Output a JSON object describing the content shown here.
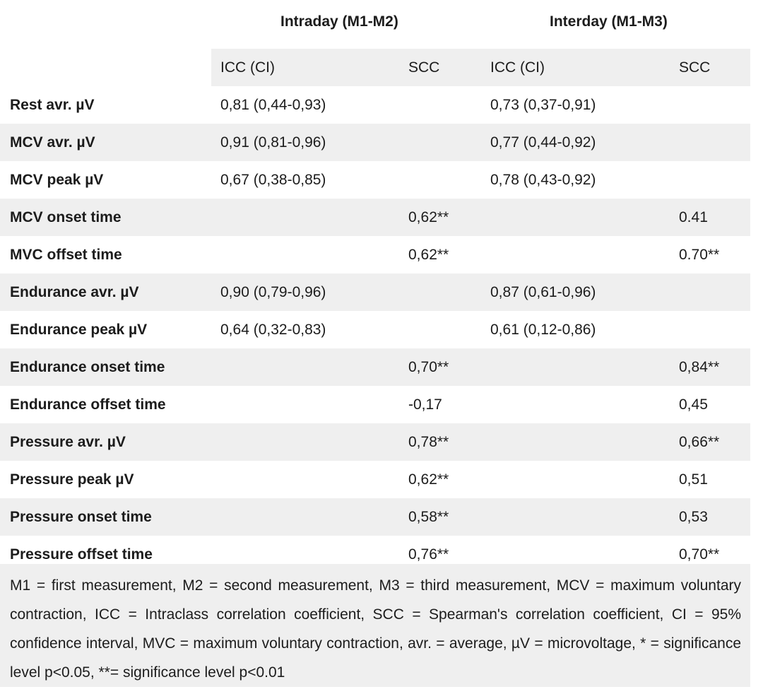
{
  "groups": {
    "intraday": "Intraday (M1-M2)",
    "interday": "Interday (M1-M3)"
  },
  "columns": {
    "icc_intra": "ICC (CI)",
    "scc_intra": "SCC",
    "icc_inter": "ICC (CI)",
    "scc_inter": "SCC"
  },
  "rows": [
    {
      "label": "Rest avr. µV",
      "icc_intra": "0,81 (0,44-0,93)",
      "scc_intra": "",
      "icc_inter": "0,73 (0,37-0,91)",
      "scc_inter": ""
    },
    {
      "label": "MCV avr. µV",
      "icc_intra": "0,91 (0,81-0,96)",
      "scc_intra": "",
      "icc_inter": "0,77 (0,44-0,92)",
      "scc_inter": ""
    },
    {
      "label": "MCV peak µV",
      "icc_intra": "0,67 (0,38-0,85)",
      "scc_intra": "",
      "icc_inter": "0,78 (0,43-0,92)",
      "scc_inter": ""
    },
    {
      "label": "MCV onset time",
      "icc_intra": "",
      "scc_intra": "0,62**",
      "icc_inter": "",
      "scc_inter": "0.41"
    },
    {
      "label": "MVC offset time",
      "icc_intra": "",
      "scc_intra": "0,62**",
      "icc_inter": "",
      "scc_inter": "0.70**"
    },
    {
      "label": "Endurance avr. µV",
      "icc_intra": "0,90 (0,79-0,96)",
      "scc_intra": "",
      "icc_inter": "0,87 (0,61-0,96)",
      "scc_inter": ""
    },
    {
      "label": "Endurance peak µV",
      "icc_intra": "0,64 (0,32-0,83)",
      "scc_intra": "",
      "icc_inter": "0,61 (0,12-0,86)",
      "scc_inter": ""
    },
    {
      "label": "Endurance onset time",
      "icc_intra": "",
      "scc_intra": "0,70**",
      "icc_inter": "",
      "scc_inter": "0,84**"
    },
    {
      "label": "Endurance offset time",
      "icc_intra": "",
      "scc_intra": "-0,17",
      "icc_inter": "",
      "scc_inter": "0,45"
    },
    {
      "label": "Pressure avr. µV",
      "icc_intra": "",
      "scc_intra": "0,78**",
      "icc_inter": "",
      "scc_inter": "0,66**"
    },
    {
      "label": "Pressure peak µV",
      "icc_intra": "",
      "scc_intra": "0,62**",
      "icc_inter": "",
      "scc_inter": "0,51"
    },
    {
      "label": "Pressure onset time",
      "icc_intra": "",
      "scc_intra": "0,58**",
      "icc_inter": "",
      "scc_inter": "0,53"
    },
    {
      "label": "Pressure offset time",
      "icc_intra": "",
      "scc_intra": "0,76**",
      "icc_inter": "",
      "scc_inter": "0,70**"
    }
  ],
  "footnote": "M1 = first measurement, M2 = second measurement, M3 = third measurement, MCV = maximum voluntary contraction, ICC = Intraclass correlation coefficient, SCC = Spearman's correlation coefficient, CI = 95% confidence interval, MVC = maximum voluntary contraction, avr. = average, µV = microvoltage, * = significance level p<0.05, **= significance level p<0.01",
  "colors": {
    "shaded_row": "#efefef",
    "text": "#1c1c1c"
  }
}
